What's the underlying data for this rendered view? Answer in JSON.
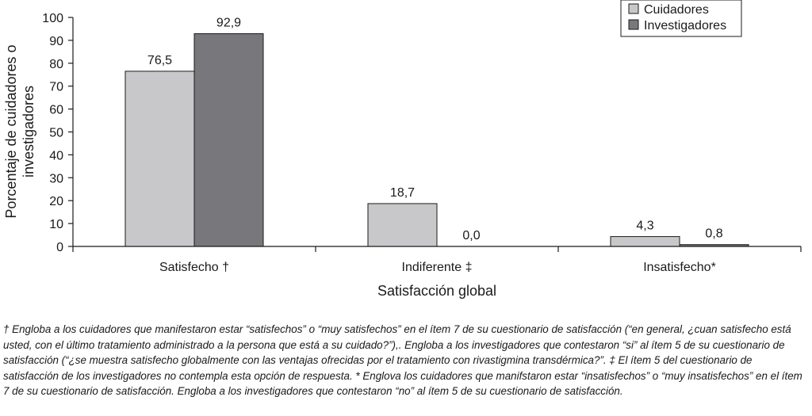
{
  "chart_data": {
    "type": "bar",
    "categories": [
      "Satisfecho †",
      "Indiferente ‡",
      "Insatisfecho*"
    ],
    "series": [
      {
        "name": "Cuidadores",
        "values": [
          76.5,
          18.7,
          4.3
        ],
        "color": "#c8c8ca"
      },
      {
        "name": "Investigadores",
        "values": [
          92.9,
          0.0,
          0.8
        ],
        "color": "#78787c"
      }
    ],
    "data_labels": [
      [
        "76,5",
        "18,7",
        "4,3"
      ],
      [
        "92,9",
        "0,0",
        "0,8"
      ]
    ],
    "xlabel": "Satisfacción global",
    "ylabel_lines": [
      "Porcentaje de cuidadores o",
      "investigadores"
    ],
    "ylim": [
      0,
      100
    ],
    "yticks": [
      0,
      10,
      20,
      30,
      40,
      50,
      60,
      70,
      80,
      90,
      100
    ],
    "grid": false,
    "legend_position": "top-right"
  },
  "footnote": "† Engloba a los cuidadores que manifestaron estar “satisfechos” o “muy satisfechos” en el ítem 7 de su cuestionario de satisfacción (“en general, ¿cuan satisfecho está usted, con el último tratamiento administrado a la persona que está a su cuidado?”),. Engloba a los investigadores que contestaron “si” al ítem 5 de su cuestionario de satisfacción (“¿se muestra satisfecho globalmente con las ventajas ofrecidas por el tratamiento con rivastigmina transdérmica?”. ‡ El ítem 5 del cuestionario de satisfacción de los investigadores no contempla esta opción de respuesta. * Englova los cuidadores que manifstaron estar “insatisfechos” o “muy insatisfechos” en el ítem 7 de su cuestionario de satisfacción. Engloba a los investigadores que contestaron “no” al ítem 5 de su cuestionario de satisfacción."
}
